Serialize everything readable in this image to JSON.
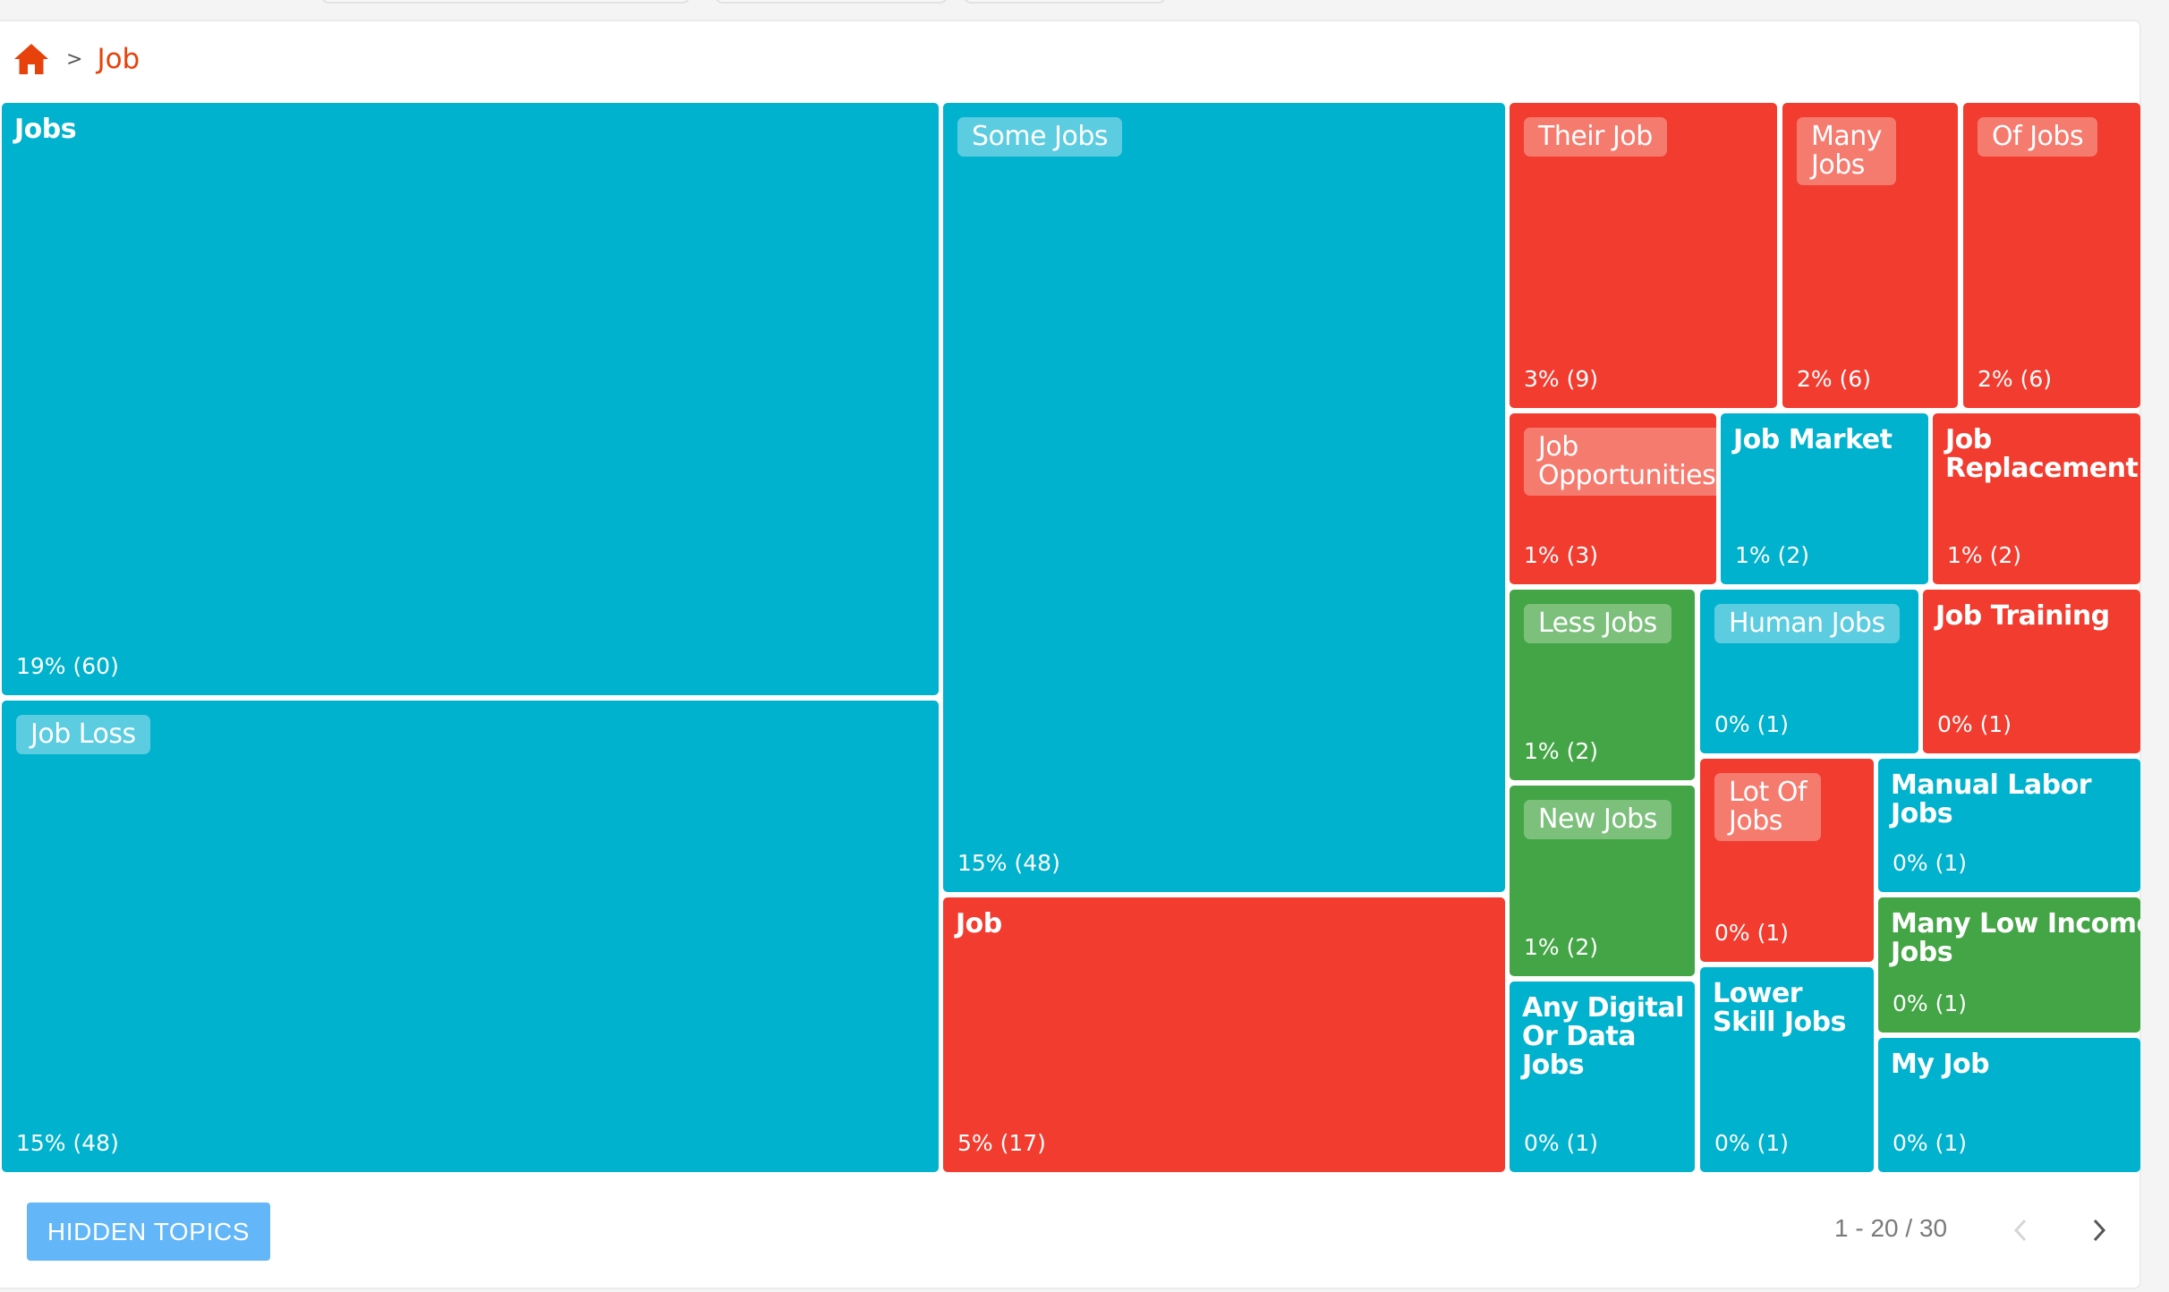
{
  "breadcrumb": {
    "home_icon": "home-icon",
    "separator": ">",
    "current": "Job"
  },
  "treemap": {
    "colors": {
      "blue": "#00b2cd",
      "red": "#f13c2f",
      "green": "#44a546"
    },
    "tiles": [
      {
        "label": "Jobs",
        "stat": "19% (60)",
        "color": "blue",
        "pill": false
      },
      {
        "label": "Job Loss",
        "stat": "15% (48)",
        "color": "blue",
        "pill": true
      },
      {
        "label": "Some Jobs",
        "stat": "15% (48)",
        "color": "blue",
        "pill": true
      },
      {
        "label": "Job",
        "stat": "5% (17)",
        "color": "red",
        "pill": false
      },
      {
        "label": "Their Job",
        "stat": "3% (9)",
        "color": "red",
        "pill": true
      },
      {
        "label": "Many\nJobs",
        "stat": "2% (6)",
        "color": "red",
        "pill": true
      },
      {
        "label": "Of Jobs",
        "stat": "2% (6)",
        "color": "red",
        "pill": true
      },
      {
        "label": "Job\nOpportunities",
        "stat": "1% (3)",
        "color": "red",
        "pill": true
      },
      {
        "label": "Job Market",
        "stat": "1% (2)",
        "color": "blue",
        "pill": false
      },
      {
        "label": "Job\nReplacement",
        "stat": "1% (2)",
        "color": "red",
        "pill": false
      },
      {
        "label": "Less Jobs",
        "stat": "1% (2)",
        "color": "green",
        "pill": true
      },
      {
        "label": "Human Jobs",
        "stat": "0% (1)",
        "color": "blue",
        "pill": true
      },
      {
        "label": "Job Training",
        "stat": "0% (1)",
        "color": "red",
        "pill": false
      },
      {
        "label": "New Jobs",
        "stat": "1% (2)",
        "color": "green",
        "pill": true
      },
      {
        "label": "Lot Of\nJobs",
        "stat": "0% (1)",
        "color": "red",
        "pill": true
      },
      {
        "label": "Manual Labor\nJobs",
        "stat": "0% (1)",
        "color": "blue",
        "pill": false
      },
      {
        "label": "Many Low Income\nJobs",
        "stat": "0% (1)",
        "color": "green",
        "pill": false
      },
      {
        "label": "Any Digital\nOr Data\nJobs",
        "stat": "0% (1)",
        "color": "blue",
        "pill": false
      },
      {
        "label": "Lower\nSkill Jobs",
        "stat": "0% (1)",
        "color": "blue",
        "pill": false
      },
      {
        "label": "My Job",
        "stat": "0% (1)",
        "color": "blue",
        "pill": false
      }
    ]
  },
  "footer": {
    "hidden_topics_label": "HIDDEN TOPICS",
    "pagination": "1 - 20 / 30",
    "prev_icon": "chevron-left-icon",
    "next_icon": "chevron-right-icon"
  }
}
